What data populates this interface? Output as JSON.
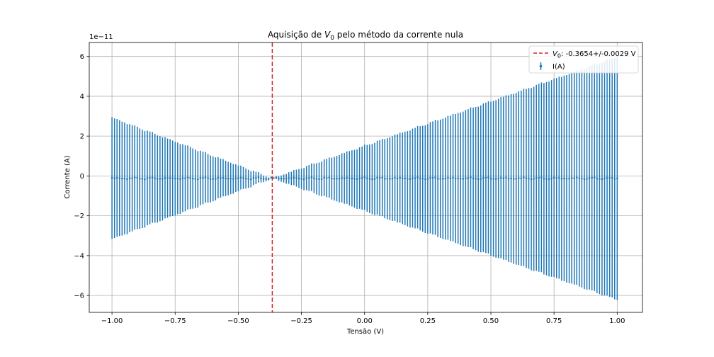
{
  "chart_data": {
    "type": "scatter",
    "title": {
      "prefix": "Aquisição de ",
      "symbol": "V",
      "subscript": "0",
      "suffix": " pelo método da corrente nula"
    },
    "xlabel": "Tensão (V)",
    "ylabel": "Corrente (A)",
    "y_multiplier": "1e−11",
    "xlim": [
      -1.09,
      1.1
    ],
    "ylim": [
      -6.85,
      6.7
    ],
    "xticks": [
      -1.0,
      -0.75,
      -0.5,
      -0.25,
      0.0,
      0.25,
      0.5,
      0.75,
      1.0
    ],
    "xtick_labels": [
      "−1.00",
      "−0.75",
      "−0.50",
      "−0.25",
      "0.00",
      "0.25",
      "0.50",
      "0.75",
      "1.00"
    ],
    "yticks": [
      -6,
      -4,
      -2,
      0,
      2,
      4,
      6
    ],
    "ytick_labels": [
      "−6",
      "−4",
      "−2",
      "0",
      "2",
      "4",
      "6"
    ],
    "grid": true,
    "legend_placement": "upper right",
    "series": [
      {
        "name": "I(A)",
        "kind": "errorbar",
        "color": "#1f77b4",
        "x_range": [
          -1.0,
          1.0
        ],
        "n_points": 201,
        "y_mean": -0.12,
        "y_noise": 0.06,
        "error_at_x_min": 3.05,
        "error_at_x_max": 6.1,
        "error_zero_at_x": -0.3654,
        "unit_scale": "1e-11"
      }
    ],
    "vlines": [
      {
        "x": -0.3654,
        "color": "#d62728",
        "style": "dashed",
        "label": {
          "symbol": "V",
          "subscript": "0",
          "text": ": -0.3654+/-0.0029 V"
        }
      }
    ]
  }
}
